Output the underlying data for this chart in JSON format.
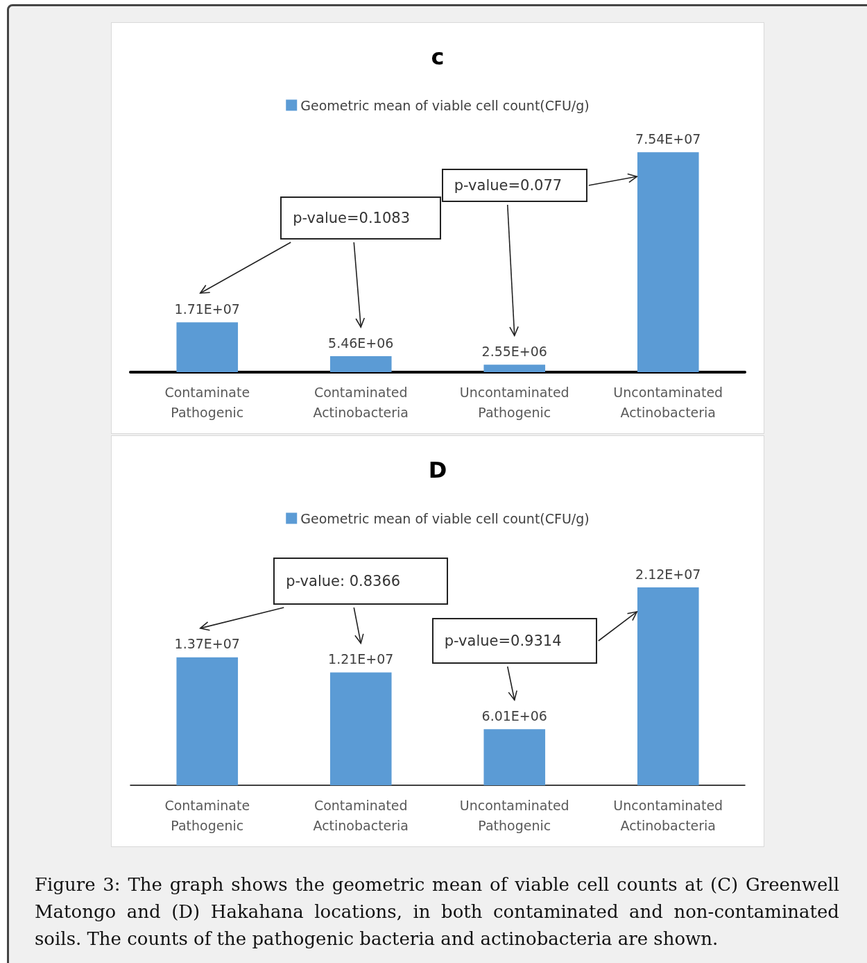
{
  "chart_data": [
    {
      "type": "bar",
      "title": "c",
      "categories": [
        "Contaminate\nPathogenic",
        "Contaminated\nActinobacteria",
        "Uncontaminated\nPathogenic",
        "Uncontaminated\nActinobacteria"
      ],
      "legend": "top",
      "series": [
        {
          "name": "Geometric mean of viable cell count(CFU/g)",
          "color": "#5b9bd5",
          "values": [
            17100000,
            5460000,
            2550000,
            75400000
          ],
          "value_labels": [
            "1.71E+07",
            "5.46E+06",
            "2.55E+06",
            "7.54E+07"
          ]
        }
      ],
      "annotations": [
        "p-value=0.1083",
        "p-value=0.077"
      ]
    },
    {
      "type": "bar",
      "title": "D",
      "categories": [
        "Contaminate\nPathogenic",
        "Contaminated\nActinobacteria",
        "Uncontaminated\nPathogenic",
        "Uncontaminated\nActinobacteria"
      ],
      "legend": "top",
      "series": [
        {
          "name": "Geometric mean of viable cell count(CFU/g)",
          "color": "#5b9bd5",
          "values": [
            13700000,
            12100000,
            6010000,
            21200000
          ],
          "value_labels": [
            "1.37E+07",
            "1.21E+07",
            "6.01E+06",
            "2.12E+07"
          ]
        }
      ],
      "annotations": [
        "p-value: 0.8366",
        "p-value=0.9314",
        "Figure 3: The graph shows the geometric mean of viable cell counts at (C) Greenwell Matongo and (D) Hakahana locations, in both contaminated and non-contaminated soils. The counts of the pathogenic bacteria and actinobacteria are shown."
      ]
    }
  ]
}
